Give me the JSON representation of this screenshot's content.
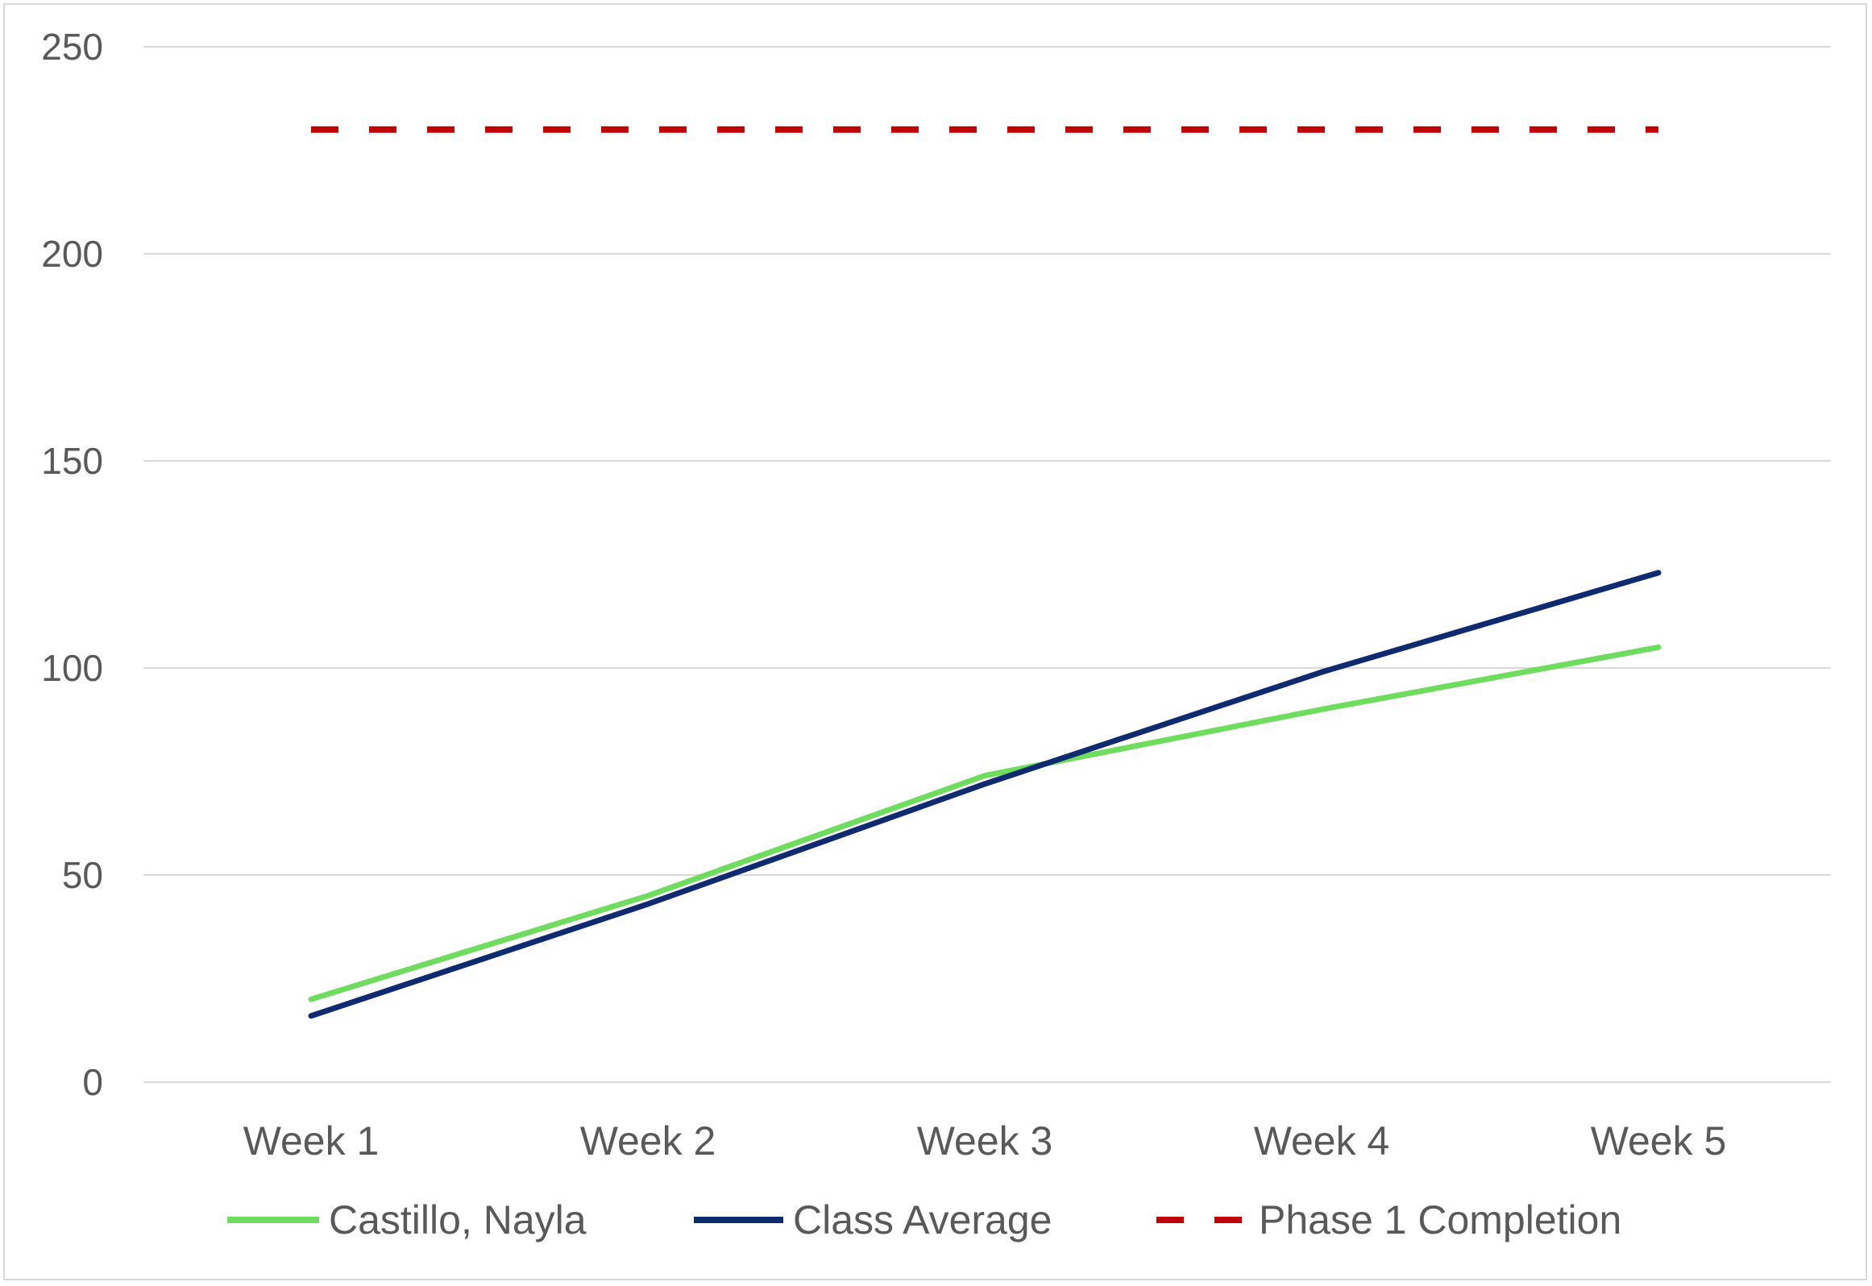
{
  "chart_data": {
    "type": "line",
    "title": "",
    "xlabel": "",
    "ylabel": "",
    "categories": [
      "Week 1",
      "Week 2",
      "Week 3",
      "Week 4",
      "Week 5"
    ],
    "ylim": [
      0,
      250
    ],
    "yticks": [
      0,
      50,
      100,
      150,
      200,
      250
    ],
    "ytick_labels": [
      "0",
      "50",
      "100",
      "150",
      "200",
      "250"
    ],
    "grid": true,
    "legend_position": "bottom",
    "series": [
      {
        "name": "Castillo, Nayla",
        "values": [
          20,
          45,
          74,
          90,
          105
        ],
        "color": "#6fdc5f",
        "style": "solid"
      },
      {
        "name": "Class Average",
        "values": [
          16,
          43,
          72,
          99,
          123
        ],
        "color": "#0f2a6e",
        "style": "solid"
      },
      {
        "name": "Phase 1 Completion",
        "values": [
          230,
          230,
          230,
          230,
          230
        ],
        "color": "#c00000",
        "style": "dashed"
      }
    ]
  }
}
